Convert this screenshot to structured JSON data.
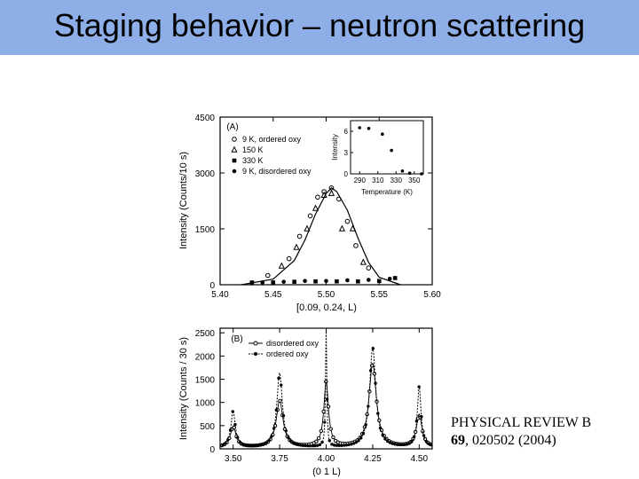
{
  "slide": {
    "title": "Staging behavior – neutron scattering",
    "citation_line1": "PHYSICAL REVIEW B",
    "citation_volume": "69",
    "citation_rest": ", 020502 (2004)"
  },
  "colors": {
    "title_bar": "#8eaee8",
    "ink": "#000000"
  },
  "chart_data": [
    {
      "type": "scatter",
      "panel_label": "(A)",
      "xlabel": "[0.09,  0.24,  L)",
      "ylabel": "Intensity  (Counts/10  s)",
      "xlim": [
        5.4,
        5.6
      ],
      "ylim": [
        0,
        4500
      ],
      "x_ticks": [
        "5.40",
        "5.45",
        "5.50",
        "5.55",
        "5.60"
      ],
      "y_ticks": [
        "0",
        "1500",
        "3000",
        "4500"
      ],
      "legend": [
        "9  K,  ordered  oxy",
        "150  K",
        "330  K",
        "9  K,  disordered  oxy"
      ],
      "series": [
        {
          "name": "9  K,  ordered  oxy",
          "marker": "circle-open",
          "x": [
            5.445,
            5.465,
            5.475,
            5.485,
            5.492,
            5.498,
            5.505,
            5.512,
            5.52,
            5.528,
            5.54
          ],
          "y": [
            250,
            700,
            1300,
            1850,
            2350,
            2500,
            2600,
            2300,
            1700,
            1050,
            450
          ]
        },
        {
          "name": "150  K",
          "marker": "triangle-open",
          "x": [
            5.458,
            5.472,
            5.482,
            5.49,
            5.498,
            5.505,
            5.515,
            5.525,
            5.535
          ],
          "y": [
            500,
            1000,
            1500,
            2050,
            2400,
            2450,
            1500,
            1500,
            600
          ]
        },
        {
          "name": "330  K",
          "marker": "square-filled",
          "x": [
            5.43,
            5.45,
            5.47,
            5.49,
            5.51,
            5.53,
            5.55,
            5.565
          ],
          "y": [
            60,
            60,
            80,
            90,
            90,
            90,
            100,
            180
          ]
        },
        {
          "name": "9  K,  disordered  oxy",
          "marker": "circle-filled",
          "x": [
            5.44,
            5.46,
            5.48,
            5.5,
            5.52,
            5.54,
            5.56
          ],
          "y": [
            60,
            80,
            100,
            100,
            120,
            130,
            160
          ]
        },
        {
          "name": "fit",
          "marker": "line",
          "x": [
            5.42,
            5.45,
            5.47,
            5.48,
            5.49,
            5.5,
            5.505,
            5.51,
            5.52,
            5.53,
            5.54,
            5.55,
            5.57
          ],
          "y": [
            0,
            150,
            650,
            1200,
            1900,
            2450,
            2600,
            2500,
            2000,
            1250,
            600,
            200,
            0
          ]
        }
      ]
    },
    {
      "type": "scatter",
      "inset": true,
      "xlabel": "Temperature  (K)",
      "ylabel": "Intensity",
      "xlim": [
        280,
        360
      ],
      "ylim": [
        0,
        7.5
      ],
      "x_ticks": [
        "290",
        "310",
        "330",
        "350"
      ],
      "y_ticks": [
        "0",
        "3",
        "6"
      ],
      "series": [
        {
          "x": [
            290,
            300,
            315,
            325,
            337,
            345,
            358
          ],
          "y": [
            6.5,
            6.4,
            5.6,
            3.3,
            0.4,
            0.1,
            0.0
          ]
        }
      ]
    },
    {
      "type": "line",
      "panel_label": "(B)",
      "xlabel": "(0  1  L)",
      "ylabel": "Intensity  (Counts  /  30  s)",
      "xlim": [
        3.43,
        4.57
      ],
      "ylim": [
        0,
        2600
      ],
      "x_ticks": [
        "3.50",
        "3.75",
        "4.00",
        "4.25",
        "4.50"
      ],
      "y_ticks": [
        "0",
        "500",
        "1000",
        "1500",
        "2000",
        "2500"
      ],
      "legend": [
        "disordered  oxy",
        "ordered  oxy"
      ],
      "peaks": [
        3.5,
        3.75,
        4.0,
        4.25,
        4.5
      ],
      "series": [
        {
          "name": "disordered  oxy",
          "marker": "circle-open",
          "peak_heights": [
            450,
            1000,
            1400,
            1800,
            700
          ],
          "widths": [
            0.018,
            0.022,
            0.015,
            0.024,
            0.018
          ]
        },
        {
          "name": "ordered  oxy",
          "marker": "circle-filled",
          "peak_heights": [
            780,
            1600,
            2600,
            2150,
            1300
          ],
          "widths": [
            0.014,
            0.018,
            0.004,
            0.02,
            0.012
          ]
        }
      ]
    }
  ]
}
